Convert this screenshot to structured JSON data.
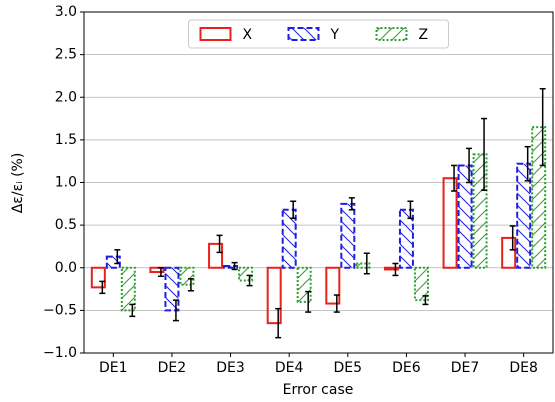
{
  "chart_data": {
    "type": "bar",
    "xlabel": "Error case",
    "ylabel": "Δε/εᵢ (%)",
    "categories": [
      "DE1",
      "DE2",
      "DE3",
      "DE4",
      "DE5",
      "DE6",
      "DE7",
      "DE8"
    ],
    "series": [
      {
        "name": "X",
        "color": "#e8201e",
        "linestyle": "solid",
        "values": [
          -0.23,
          -0.05,
          0.28,
          -0.65,
          -0.42,
          -0.02,
          1.05,
          0.35
        ],
        "errors": [
          0.07,
          0.05,
          0.1,
          0.17,
          0.1,
          0.07,
          0.15,
          0.14
        ]
      },
      {
        "name": "Y",
        "color": "#1f1fe0",
        "linestyle": "dashed",
        "hatch": "\\",
        "values": [
          0.13,
          -0.5,
          0.02,
          0.68,
          0.75,
          0.68,
          1.2,
          1.22
        ],
        "errors": [
          0.08,
          0.12,
          0.04,
          0.1,
          0.07,
          0.1,
          0.2,
          0.2
        ]
      },
      {
        "name": "Z",
        "color": "#2ca02c",
        "linestyle": "dotted",
        "hatch": "/",
        "values": [
          -0.5,
          -0.2,
          -0.15,
          -0.4,
          0.05,
          -0.38,
          1.33,
          1.65
        ],
        "errors": [
          0.07,
          0.07,
          0.06,
          0.12,
          0.12,
          0.05,
          0.42,
          0.45
        ]
      }
    ],
    "ylim": [
      -1,
      3
    ],
    "yticks": [
      {
        "value": -1,
        "label": "−1.0"
      },
      {
        "value": -0.5,
        "label": "−0.5"
      },
      {
        "value": 0,
        "label": "0.0"
      },
      {
        "value": 0.5,
        "label": "0.5"
      },
      {
        "value": 1,
        "label": "1.0"
      },
      {
        "value": 1.5,
        "label": "1.5"
      },
      {
        "value": 2,
        "label": "2.0"
      },
      {
        "value": 2.5,
        "label": "2.5"
      },
      {
        "value": 3,
        "label": "3.0"
      }
    ],
    "grid": true,
    "legend": "top"
  }
}
